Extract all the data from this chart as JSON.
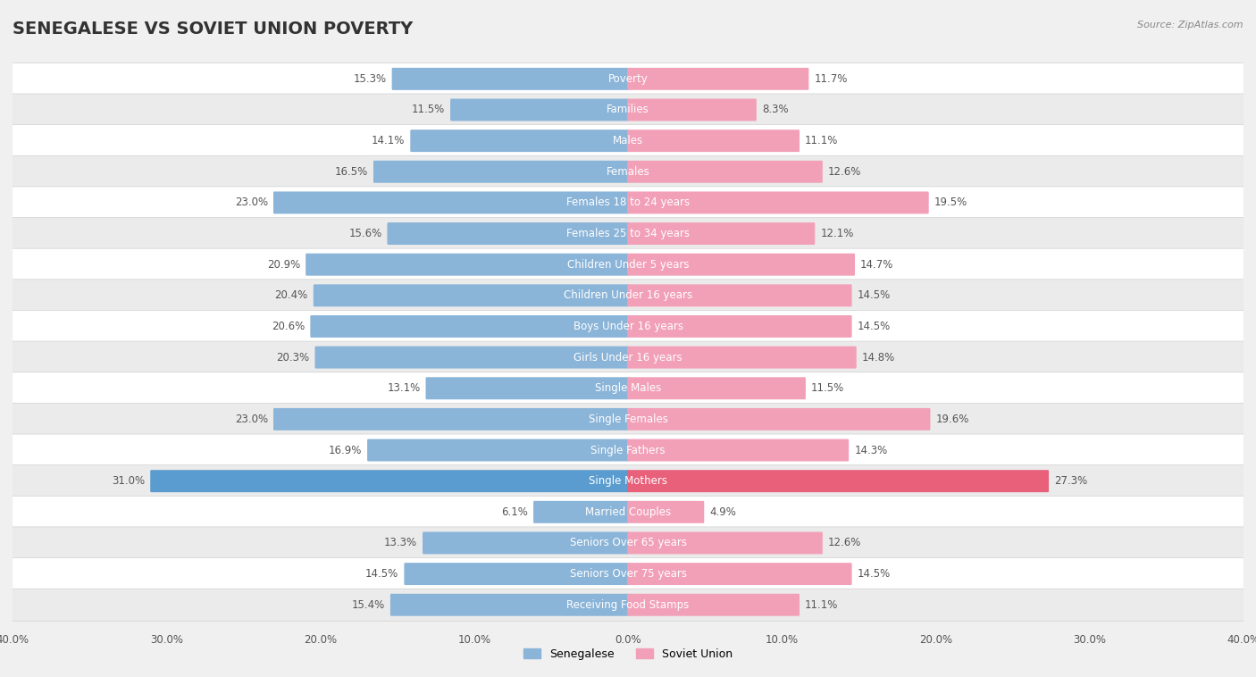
{
  "title": "SENEGALESE VS SOVIET UNION POVERTY",
  "source": "Source: ZipAtlas.com",
  "categories": [
    "Poverty",
    "Families",
    "Males",
    "Females",
    "Females 18 to 24 years",
    "Females 25 to 34 years",
    "Children Under 5 years",
    "Children Under 16 years",
    "Boys Under 16 years",
    "Girls Under 16 years",
    "Single Males",
    "Single Females",
    "Single Fathers",
    "Single Mothers",
    "Married Couples",
    "Seniors Over 65 years",
    "Seniors Over 75 years",
    "Receiving Food Stamps"
  ],
  "senegalese": [
    15.3,
    11.5,
    14.1,
    16.5,
    23.0,
    15.6,
    20.9,
    20.4,
    20.6,
    20.3,
    13.1,
    23.0,
    16.9,
    31.0,
    6.1,
    13.3,
    14.5,
    15.4
  ],
  "soviet_union": [
    11.7,
    8.3,
    11.1,
    12.6,
    19.5,
    12.1,
    14.7,
    14.5,
    14.5,
    14.8,
    11.5,
    19.6,
    14.3,
    27.3,
    4.9,
    12.6,
    14.5,
    11.1
  ],
  "senegalese_color": "#8ab4d8",
  "soviet_union_color": "#f2a0b8",
  "single_mothers_sene_color": "#5a9ccf",
  "single_mothers_soviet_color": "#e8607a",
  "row_bg_odd": "#f5f5f5",
  "row_bg_even": "#e8e8e8",
  "fig_bg": "#f0f0f0",
  "axis_limit": 40.0,
  "bar_height": 0.62,
  "title_fontsize": 14,
  "label_fontsize": 8.5,
  "value_fontsize": 8.5
}
